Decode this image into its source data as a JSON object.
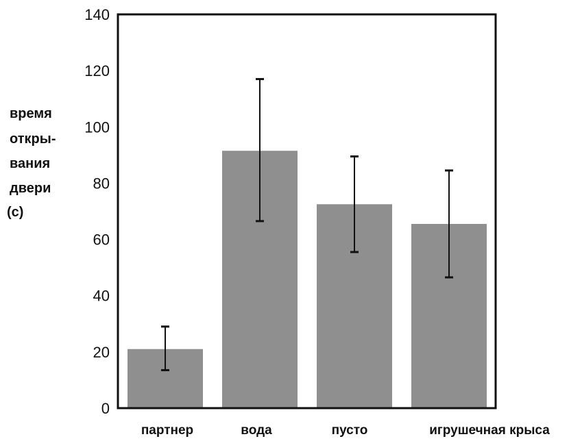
{
  "chart_data": {
    "type": "bar",
    "categories": [
      "партнер",
      "вода",
      "пусто",
      "игрушечная крыса"
    ],
    "values": [
      21,
      91.5,
      72.5,
      65.5
    ],
    "error_low": [
      13.5,
      66.5,
      55.5,
      46.5
    ],
    "error_high": [
      29,
      117,
      89.5,
      84.5
    ],
    "ylabel_lines": [
      "время",
      "откры-",
      "вания",
      "двери",
      "(с)"
    ],
    "xlabel": "",
    "title": "",
    "ylim": [
      0,
      140
    ],
    "yticks": [
      0,
      20,
      40,
      60,
      80,
      100,
      120,
      140
    ],
    "grid": false,
    "colors": {
      "bar": "#8f8f8f",
      "axis": "#111111",
      "error_bar": "#111111"
    }
  }
}
